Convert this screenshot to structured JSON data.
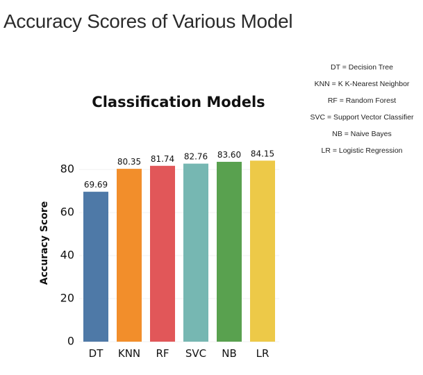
{
  "page": {
    "title": "Accuracy Scores of Various Model"
  },
  "legend_notes": [
    "DT = Decision Tree",
    "KNN = K K-Nearest Neighbor",
    "RF = Random Forest",
    "SVC = Support Vector Classifier",
    "NB = Naive Bayes",
    "LR = Logistic Regression"
  ],
  "chart_data": {
    "type": "bar",
    "title": "Classification Models",
    "xlabel": "",
    "ylabel": "Accuracy Score",
    "categories": [
      "DT",
      "KNN",
      "RF",
      "SVC",
      "NB",
      "LR"
    ],
    "values": [
      69.69,
      80.35,
      81.74,
      82.76,
      83.6,
      84.15
    ],
    "value_labels": [
      "69.69",
      "80.35",
      "81.74",
      "82.76",
      "83.60",
      "84.15"
    ],
    "colors": [
      "#4e79a7",
      "#f28e2b",
      "#e15759",
      "#76b7b2",
      "#59a14f",
      "#edc948"
    ],
    "yticks": [
      0,
      20,
      40,
      60,
      80
    ],
    "ylim": [
      0,
      92
    ],
    "grid": true,
    "legend": "none"
  }
}
